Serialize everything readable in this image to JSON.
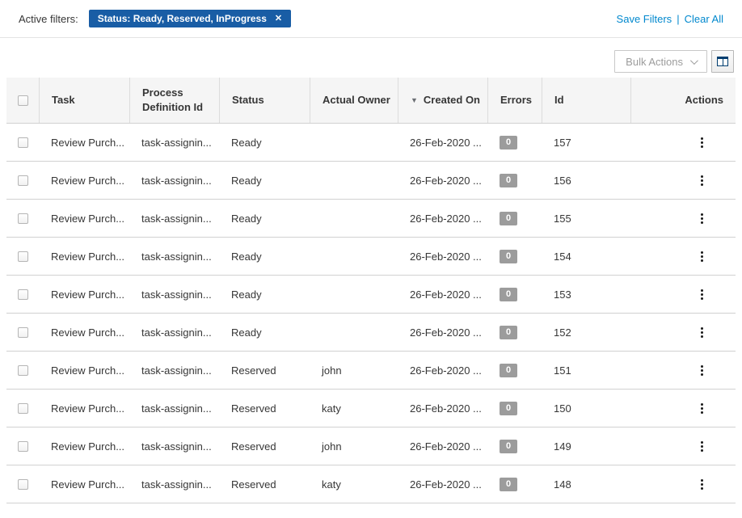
{
  "filters_bar": {
    "label": "Active filters:",
    "chip": {
      "text": "Status: Ready, Reserved, InProgress",
      "close_icon": "✕",
      "bg": "#195da5"
    },
    "save_filters": "Save Filters",
    "separator": "|",
    "clear_all": "Clear All"
  },
  "toolbar": {
    "bulk_actions_label": "Bulk Actions",
    "columns_icon": "table-columns"
  },
  "table": {
    "columns": {
      "task": "Task",
      "process_definition_id": "Process Definition Id",
      "status": "Status",
      "actual_owner": "Actual Owner",
      "created_on": "Created On",
      "errors": "Errors",
      "id": "Id",
      "actions": "Actions"
    },
    "sort": {
      "column": "created_on",
      "direction": "desc",
      "icon": "▼"
    },
    "rows": [
      {
        "task": "Review Purch...",
        "process_definition_id": "task-assignin...",
        "status": "Ready",
        "actual_owner": "",
        "created_on": "26-Feb-2020 ...",
        "errors": "0",
        "id": "157"
      },
      {
        "task": "Review Purch...",
        "process_definition_id": "task-assignin...",
        "status": "Ready",
        "actual_owner": "",
        "created_on": "26-Feb-2020 ...",
        "errors": "0",
        "id": "156"
      },
      {
        "task": "Review Purch...",
        "process_definition_id": "task-assignin...",
        "status": "Ready",
        "actual_owner": "",
        "created_on": "26-Feb-2020 ...",
        "errors": "0",
        "id": "155"
      },
      {
        "task": "Review Purch...",
        "process_definition_id": "task-assignin...",
        "status": "Ready",
        "actual_owner": "",
        "created_on": "26-Feb-2020 ...",
        "errors": "0",
        "id": "154"
      },
      {
        "task": "Review Purch...",
        "process_definition_id": "task-assignin...",
        "status": "Ready",
        "actual_owner": "",
        "created_on": "26-Feb-2020 ...",
        "errors": "0",
        "id": "153"
      },
      {
        "task": "Review Purch...",
        "process_definition_id": "task-assignin...",
        "status": "Ready",
        "actual_owner": "",
        "created_on": "26-Feb-2020 ...",
        "errors": "0",
        "id": "152"
      },
      {
        "task": "Review Purch...",
        "process_definition_id": "task-assignin...",
        "status": "Reserved",
        "actual_owner": "john",
        "created_on": "26-Feb-2020 ...",
        "errors": "0",
        "id": "151"
      },
      {
        "task": "Review Purch...",
        "process_definition_id": "task-assignin...",
        "status": "Reserved",
        "actual_owner": "katy",
        "created_on": "26-Feb-2020 ...",
        "errors": "0",
        "id": "150"
      },
      {
        "task": "Review Purch...",
        "process_definition_id": "task-assignin...",
        "status": "Reserved",
        "actual_owner": "john",
        "created_on": "26-Feb-2020 ...",
        "errors": "0",
        "id": "149"
      },
      {
        "task": "Review Purch...",
        "process_definition_id": "task-assignin...",
        "status": "Reserved",
        "actual_owner": "katy",
        "created_on": "26-Feb-2020 ...",
        "errors": "0",
        "id": "148"
      }
    ]
  },
  "colors": {
    "link_blue": "#0088ce",
    "chip_blue": "#195da5",
    "badge_gray": "#9c9c9c",
    "header_bg": "#f5f5f5",
    "border": "#d1d1d1",
    "text": "#363636"
  }
}
